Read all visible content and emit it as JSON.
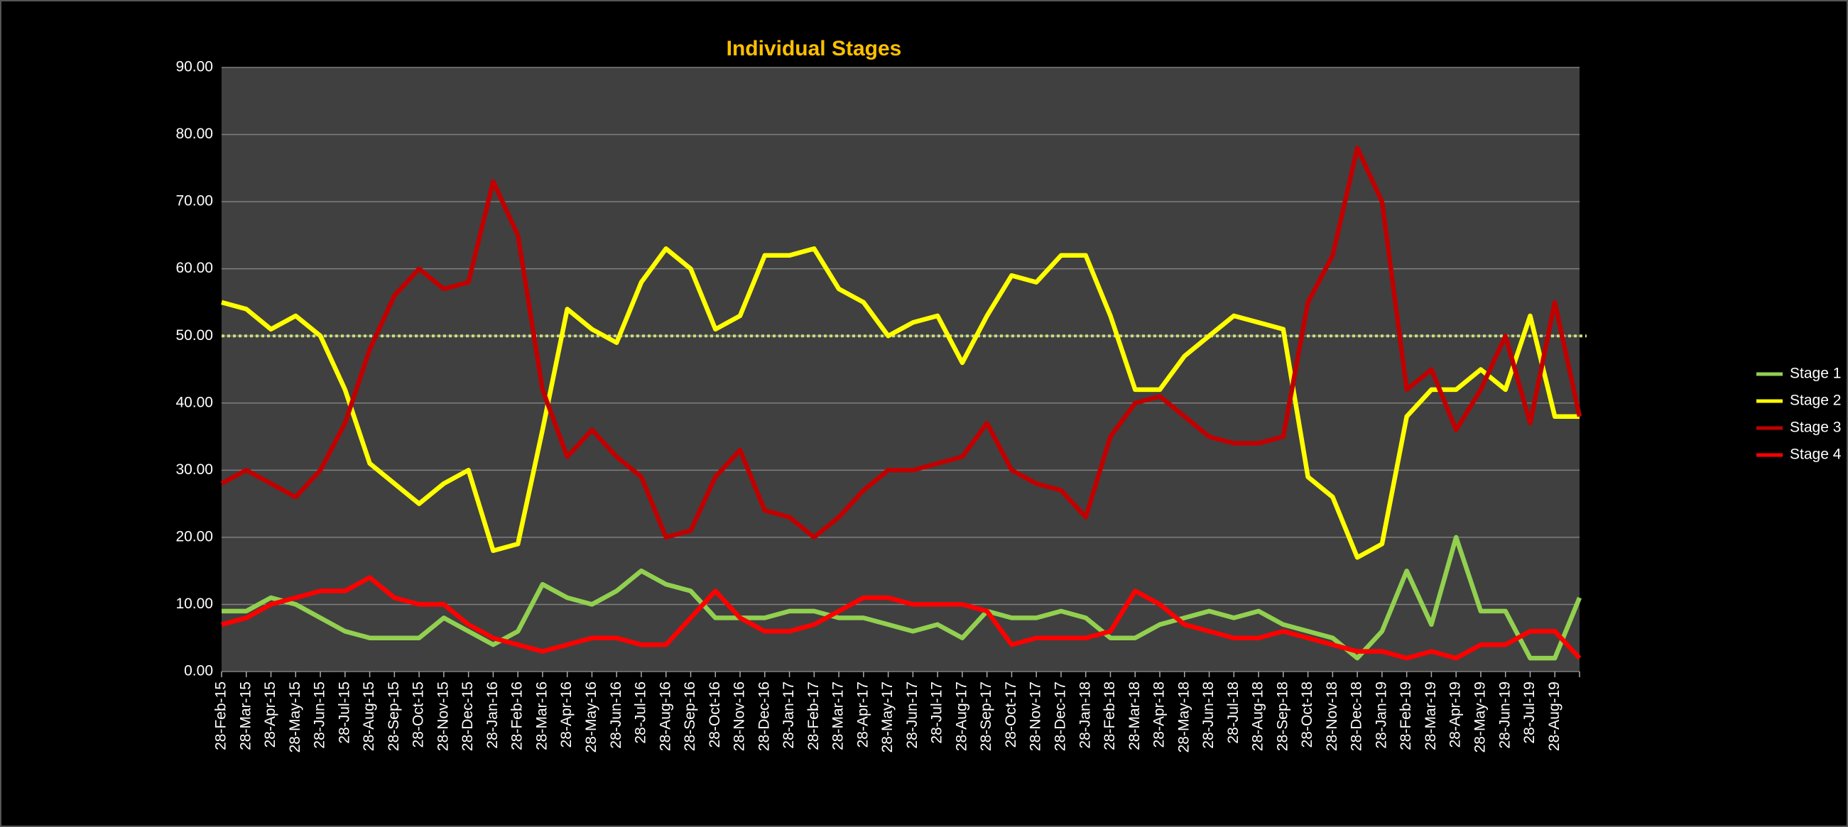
{
  "chart_data": {
    "type": "line",
    "title": "Individual Stages",
    "categories": [
      "28-Feb-15",
      "28-Mar-15",
      "28-Apr-15",
      "28-May-15",
      "28-Jun-15",
      "28-Jul-15",
      "28-Aug-15",
      "28-Sep-15",
      "28-Oct-15",
      "28-Nov-15",
      "28-Dec-15",
      "28-Jan-16",
      "28-Feb-16",
      "28-Mar-16",
      "28-Apr-16",
      "28-May-16",
      "28-Jun-16",
      "28-Jul-16",
      "28-Aug-16",
      "28-Sep-16",
      "28-Oct-16",
      "28-Nov-16",
      "28-Dec-16",
      "28-Jan-17",
      "28-Feb-17",
      "28-Mar-17",
      "28-Apr-17",
      "28-May-17",
      "28-Jun-17",
      "28-Jul-17",
      "28-Aug-17",
      "28-Sep-17",
      "28-Oct-17",
      "28-Nov-17",
      "28-Dec-17",
      "28-Jan-18",
      "28-Feb-18",
      "28-Mar-18",
      "28-Apr-18",
      "28-May-18",
      "28-Jun-18",
      "28-Jul-18",
      "28-Aug-18",
      "28-Sep-18",
      "28-Oct-18",
      "28-Nov-18",
      "28-Dec-18",
      "28-Jan-19",
      "28-Feb-19",
      "28-Mar-19",
      "28-Apr-19",
      "28-May-19",
      "28-Jun-19",
      "28-Jul-19",
      "28-Aug-19",
      null
    ],
    "series": [
      {
        "name": "Stage 1",
        "color": "#92d050",
        "values": [
          9,
          9,
          11,
          10,
          8,
          6,
          5,
          5,
          5,
          8,
          6,
          4,
          6,
          13,
          11,
          10,
          12,
          15,
          13,
          12,
          8,
          8,
          8,
          9,
          9,
          8,
          8,
          7,
          6,
          7,
          5,
          9,
          8,
          8,
          9,
          8,
          5,
          5,
          7,
          8,
          9,
          8,
          9,
          7,
          6,
          5,
          2,
          6,
          15,
          7,
          20,
          9,
          9,
          2,
          2,
          11
        ]
      },
      {
        "name": "Stage 2",
        "color": "#ffff00",
        "values": [
          55,
          54,
          51,
          53,
          50,
          42,
          31,
          28,
          25,
          28,
          30,
          18,
          19,
          36,
          54,
          51,
          49,
          58,
          63,
          60,
          51,
          53,
          62,
          62,
          63,
          57,
          55,
          50,
          52,
          53,
          46,
          53,
          59,
          58,
          62,
          62,
          53,
          42,
          42,
          47,
          50,
          53,
          52,
          51,
          29,
          26,
          17,
          19,
          38,
          42,
          42,
          45,
          42,
          53,
          38,
          38
        ]
      },
      {
        "name": "Stage 3",
        "color": "#c00000",
        "values": [
          28,
          30,
          28,
          26,
          30,
          37,
          48,
          56,
          60,
          57,
          58,
          73,
          65,
          42,
          32,
          36,
          32,
          29,
          20,
          21,
          29,
          33,
          24,
          23,
          20,
          23,
          27,
          30,
          30,
          31,
          32,
          37,
          30,
          28,
          27,
          23,
          35,
          40,
          41,
          38,
          35,
          34,
          34,
          35,
          55,
          62,
          78,
          70,
          42,
          45,
          36,
          42,
          50,
          37,
          55,
          38
        ]
      },
      {
        "name": "Stage 4",
        "color": "#ff0000",
        "values": [
          7,
          8,
          10,
          11,
          12,
          12,
          14,
          11,
          10,
          10,
          7,
          5,
          4,
          3,
          4,
          5,
          5,
          4,
          4,
          8,
          12,
          8,
          6,
          6,
          7,
          9,
          11,
          11,
          10,
          10,
          10,
          9,
          4,
          5,
          5,
          5,
          6,
          12,
          10,
          7,
          6,
          5,
          5,
          6,
          5,
          4,
          3,
          3,
          2,
          3,
          2,
          4,
          4,
          6,
          6,
          2
        ]
      }
    ],
    "ylim": [
      0,
      90
    ],
    "yticks": [
      {
        "value": 0,
        "label": "0.00"
      },
      {
        "value": 10,
        "label": "10.00"
      },
      {
        "value": 20,
        "label": "20.00"
      },
      {
        "value": 30,
        "label": "30.00"
      },
      {
        "value": 40,
        "label": "40.00"
      },
      {
        "value": 50,
        "label": "50.00"
      },
      {
        "value": 60,
        "label": "60.00"
      },
      {
        "value": 70,
        "label": "70.00"
      },
      {
        "value": 80,
        "label": "80.00"
      },
      {
        "value": 90,
        "label": "90.00"
      }
    ],
    "reference_line": {
      "value": 50,
      "color": "#c6e07a"
    },
    "grid": true,
    "legend": "right"
  }
}
